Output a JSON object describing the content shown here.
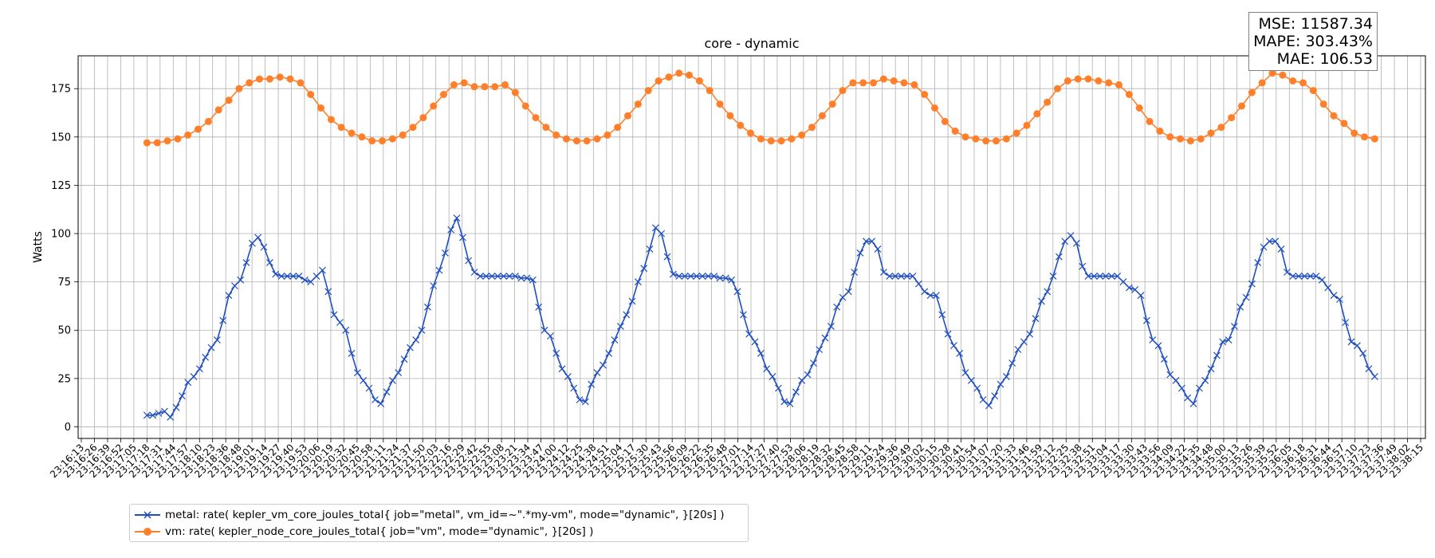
{
  "chart_data": {
    "type": "line",
    "title": "core - dynamic",
    "xlabel": "",
    "ylabel": "Watts",
    "ylim": [
      -6,
      192
    ],
    "yticks": [
      0,
      25,
      50,
      75,
      100,
      125,
      150,
      175
    ],
    "grid": true,
    "legend_position": "below-left",
    "x_ticks": [
      "23:16:13",
      "23:16:26",
      "23:16:39",
      "23:16:52",
      "23:17:05",
      "23:17:18",
      "23:17:31",
      "23:17:44",
      "23:17:57",
      "23:18:10",
      "23:18:23",
      "23:18:36",
      "23:18:48",
      "23:19:01",
      "23:19:14",
      "23:19:27",
      "23:19:40",
      "23:19:53",
      "23:20:06",
      "23:20:19",
      "23:20:32",
      "23:20:45",
      "23:20:58",
      "23:21:11",
      "23:21:24",
      "23:21:37",
      "23:21:50",
      "23:22:03",
      "23:22:16",
      "23:22:29",
      "23:22:42",
      "23:22:55",
      "23:23:08",
      "23:23:21",
      "23:23:34",
      "23:23:47",
      "23:24:00",
      "23:24:12",
      "23:24:25",
      "23:24:38",
      "23:24:51",
      "23:25:04",
      "23:25:17",
      "23:25:30",
      "23:25:43",
      "23:25:56",
      "23:26:09",
      "23:26:22",
      "23:26:35",
      "23:26:48",
      "23:27:01",
      "23:27:14",
      "23:27:27",
      "23:27:40",
      "23:27:53",
      "23:28:06",
      "23:28:19",
      "23:28:32",
      "23:28:45",
      "23:28:58",
      "23:29:11",
      "23:29:24",
      "23:29:36",
      "23:29:49",
      "23:30:02",
      "23:30:15",
      "23:30:28",
      "23:30:41",
      "23:30:54",
      "23:31:07",
      "23:31:20",
      "23:31:33",
      "23:31:46",
      "23:31:59",
      "23:32:12",
      "23:32:25",
      "23:32:38",
      "23:32:51",
      "23:33:04",
      "23:33:17",
      "23:33:30",
      "23:33:43",
      "23:33:56",
      "23:34:09",
      "23:34:22",
      "23:34:35",
      "23:34:48",
      "23:35:00",
      "23:35:13",
      "23:35:26",
      "23:35:39",
      "23:35:52",
      "23:36:05",
      "23:36:18",
      "23:36:31",
      "23:36:44",
      "23:36:57",
      "23:37:10",
      "23:37:23",
      "23:37:36",
      "23:37:49",
      "23:38:02",
      "23:38:15"
    ],
    "x_first_point_tick_index": 5,
    "x_last_point_tick_index": 98.5,
    "series": [
      {
        "name": "metal: rate( kepler_vm_core_joules_total{ job=\"metal\", vm_id=~\".*my-vm\", mode=\"dynamic\", }[20s] )",
        "color": "#1f4fbf",
        "marker": "x",
        "values": [
          6,
          6,
          7,
          8,
          5,
          10,
          16,
          23,
          26,
          30,
          36,
          41,
          45,
          55,
          68,
          73,
          76,
          85,
          95,
          98,
          93,
          85,
          79,
          78,
          78,
          78,
          78,
          76,
          75,
          78,
          81,
          70,
          58,
          54,
          50,
          38,
          28,
          24,
          20,
          14,
          12,
          18,
          24,
          28,
          35,
          41,
          45,
          50,
          62,
          73,
          81,
          90,
          102,
          108,
          98,
          86,
          80,
          78,
          78,
          78,
          78,
          78,
          78,
          78,
          77,
          77,
          76,
          62,
          50,
          47,
          38,
          30,
          26,
          20,
          14,
          13,
          22,
          28,
          32,
          38,
          45,
          52,
          58,
          65,
          75,
          82,
          92,
          103,
          100,
          88,
          79,
          78,
          78,
          78,
          78,
          78,
          78,
          78,
          77,
          77,
          76,
          70,
          58,
          48,
          44,
          38,
          30,
          26,
          20,
          13,
          12,
          18,
          24,
          27,
          33,
          40,
          46,
          52,
          62,
          67,
          70,
          80,
          90,
          96,
          96,
          92,
          80,
          78,
          78,
          78,
          78,
          78,
          74,
          70,
          68,
          68,
          58,
          48,
          42,
          38,
          28,
          24,
          20,
          14,
          11,
          16,
          22,
          26,
          33,
          40,
          44,
          48,
          56,
          65,
          70,
          78,
          88,
          96,
          99,
          95,
          83,
          78,
          78,
          78,
          78,
          78,
          78,
          75,
          72,
          71,
          68,
          55,
          45,
          42,
          35,
          27,
          24,
          20,
          15,
          12,
          20,
          24,
          30,
          37,
          44,
          45,
          52,
          62,
          67,
          74,
          85,
          93,
          96,
          96,
          92,
          80,
          78,
          78,
          78,
          78,
          78,
          76,
          72,
          68,
          66,
          54,
          44,
          42,
          38,
          30,
          26
        ]
      },
      {
        "name": "vm: rate( kepler_node_core_joules_total{ job=\"vm\", mode=\"dynamic\", }[20s] )",
        "color": "#ff7f2a",
        "marker": "o",
        "values": [
          147,
          147,
          148,
          149,
          151,
          154,
          158,
          164,
          169,
          175,
          178,
          180,
          180,
          181,
          180,
          178,
          172,
          165,
          159,
          155,
          152,
          150,
          148,
          148,
          149,
          151,
          155,
          160,
          166,
          172,
          177,
          178,
          176,
          176,
          176,
          177,
          173,
          166,
          160,
          155,
          151,
          149,
          148,
          148,
          149,
          151,
          155,
          161,
          167,
          174,
          179,
          181,
          183,
          182,
          179,
          174,
          167,
          161,
          156,
          152,
          149,
          148,
          148,
          149,
          151,
          155,
          161,
          167,
          174,
          178,
          178,
          178,
          180,
          179,
          178,
          177,
          172,
          165,
          158,
          153,
          150,
          149,
          148,
          148,
          149,
          152,
          156,
          162,
          168,
          175,
          179,
          180,
          180,
          179,
          178,
          177,
          172,
          165,
          158,
          153,
          150,
          149,
          148,
          149,
          152,
          155,
          160,
          166,
          173,
          178,
          183,
          182,
          179,
          178,
          174,
          167,
          161,
          157,
          152,
          150,
          149
        ]
      }
    ]
  },
  "metrics_box": {
    "mse": "MSE: 11587.34",
    "mape": "MAPE: 303.43%",
    "mae": "MAE: 106.53"
  }
}
